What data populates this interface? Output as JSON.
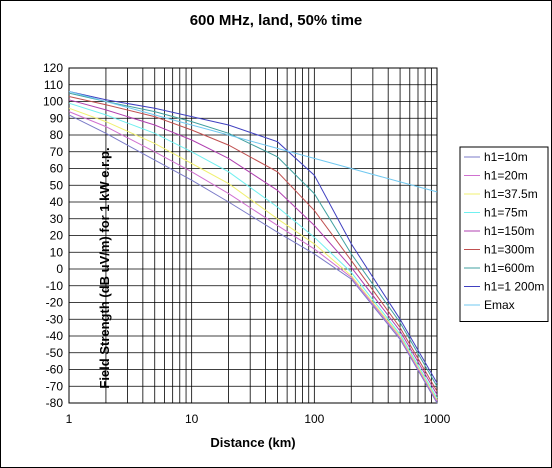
{
  "chart_data": {
    "type": "line",
    "title": "600 MHz, land, 50% time",
    "xlabel": "Distance (km)",
    "ylabel": "Field Strength (dB uV/m) for 1 kW e.r.p.",
    "x_scale": "log",
    "xlim": [
      1,
      1000
    ],
    "ylim": [
      -80,
      120
    ],
    "x_ticks": [
      "1",
      "10",
      "100",
      "1000"
    ],
    "x_tick_values": [
      1,
      10,
      100,
      1000
    ],
    "y_ticks": [
      "120",
      "110",
      "100",
      "90",
      "80",
      "70",
      "60",
      "50",
      "40",
      "30",
      "20",
      "10",
      "0",
      "-10",
      "-20",
      "-30",
      "-40",
      "-50",
      "-60",
      "-70",
      "-80"
    ],
    "y_tick_values": [
      120,
      110,
      100,
      90,
      80,
      70,
      60,
      50,
      40,
      30,
      20,
      10,
      0,
      -10,
      -20,
      -30,
      -40,
      -50,
      -60,
      -70,
      -80
    ],
    "grid": true,
    "legend_position": "right",
    "series": [
      {
        "name": "h1=10m",
        "color": "#7b7bc8",
        "x": [
          1,
          2,
          5,
          10,
          20,
          50,
          100,
          200,
          500,
          1000
        ],
        "y": [
          92,
          81,
          65,
          53,
          40,
          22,
          9,
          -6,
          -42,
          -80
        ]
      },
      {
        "name": "h1=20m",
        "color": "#d070d0",
        "x": [
          1,
          2,
          5,
          10,
          20,
          50,
          100,
          200,
          500,
          1000
        ],
        "y": [
          94,
          85,
          70,
          58,
          45,
          26,
          12,
          -5,
          -41,
          -79
        ]
      },
      {
        "name": "h1=37.5m",
        "color": "#f0f070",
        "x": [
          1,
          2,
          5,
          10,
          20,
          50,
          100,
          200,
          500,
          1000
        ],
        "y": [
          96,
          88,
          75,
          63,
          51,
          30,
          15,
          -4,
          -40,
          -78
        ]
      },
      {
        "name": "h1=75m",
        "color": "#70f0f0",
        "x": [
          1,
          2,
          5,
          10,
          20,
          50,
          100,
          200,
          500,
          1000
        ],
        "y": [
          99,
          92,
          81,
          70,
          58,
          37,
          19,
          -2,
          -39,
          -77
        ]
      },
      {
        "name": "h1=150m",
        "color": "#b040b0",
        "x": [
          1,
          2,
          5,
          10,
          20,
          50,
          100,
          200,
          500,
          1000
        ],
        "y": [
          101,
          95,
          86,
          77,
          66,
          47,
          26,
          1,
          -37,
          -75
        ]
      },
      {
        "name": "h1=300m",
        "color": "#c05050",
        "x": [
          1,
          2,
          5,
          10,
          20,
          50,
          100,
          200,
          500,
          1000
        ],
        "y": [
          103,
          98,
          91,
          83,
          74,
          58,
          35,
          5,
          -35,
          -73
        ]
      },
      {
        "name": "h1=600m",
        "color": "#40a0a0",
        "x": [
          1,
          2,
          5,
          10,
          20,
          50,
          100,
          200,
          500,
          1000
        ],
        "y": [
          105,
          100,
          94,
          88,
          81,
          67,
          45,
          9,
          -32,
          -70
        ]
      },
      {
        "name": "h1=1 200m",
        "color": "#4040c0",
        "x": [
          1,
          2,
          5,
          10,
          20,
          50,
          100,
          200,
          500,
          1000
        ],
        "y": [
          106,
          101,
          96,
          91,
          86,
          76,
          56,
          15,
          -30,
          -68
        ]
      },
      {
        "name": "Emax",
        "color": "#70c8f0",
        "x": [
          1,
          2,
          5,
          10,
          20,
          50,
          100,
          200,
          500,
          1000
        ],
        "y": [
          106,
          100,
          92,
          86,
          80,
          72,
          66,
          60,
          52,
          46
        ]
      }
    ]
  }
}
